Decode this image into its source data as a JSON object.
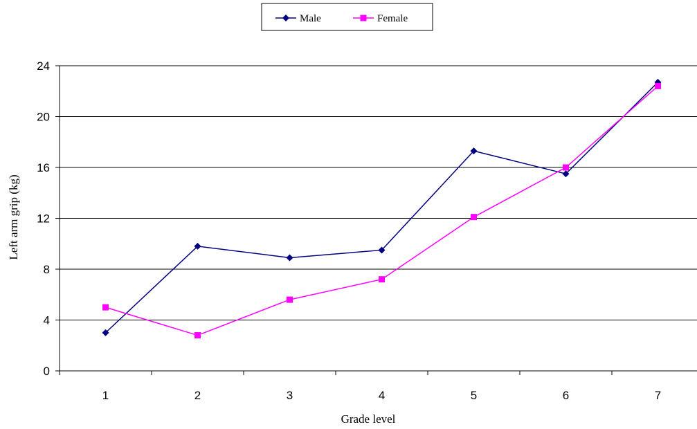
{
  "chart_data": {
    "type": "line",
    "title": "",
    "xlabel": "Grade level",
    "ylabel": "Left arm grip (kg)",
    "x": [
      1,
      2,
      3,
      4,
      5,
      6,
      7
    ],
    "x_tick_labels": [
      "1",
      "2",
      "3",
      "4",
      "5",
      "6",
      "7"
    ],
    "ylim": [
      0,
      24
    ],
    "y_ticks": [
      0,
      4,
      8,
      12,
      16,
      20,
      24
    ],
    "grid": "horizontal",
    "legend": "top-center",
    "series": [
      {
        "name": "Male",
        "color": "#000080",
        "marker": "diamond",
        "values": [
          3.0,
          9.8,
          8.9,
          9.5,
          17.3,
          15.5,
          22.7
        ]
      },
      {
        "name": "Female",
        "color": "#ff00ff",
        "marker": "square",
        "values": [
          5.0,
          2.8,
          5.6,
          7.2,
          12.1,
          16.0,
          22.4
        ]
      }
    ]
  }
}
